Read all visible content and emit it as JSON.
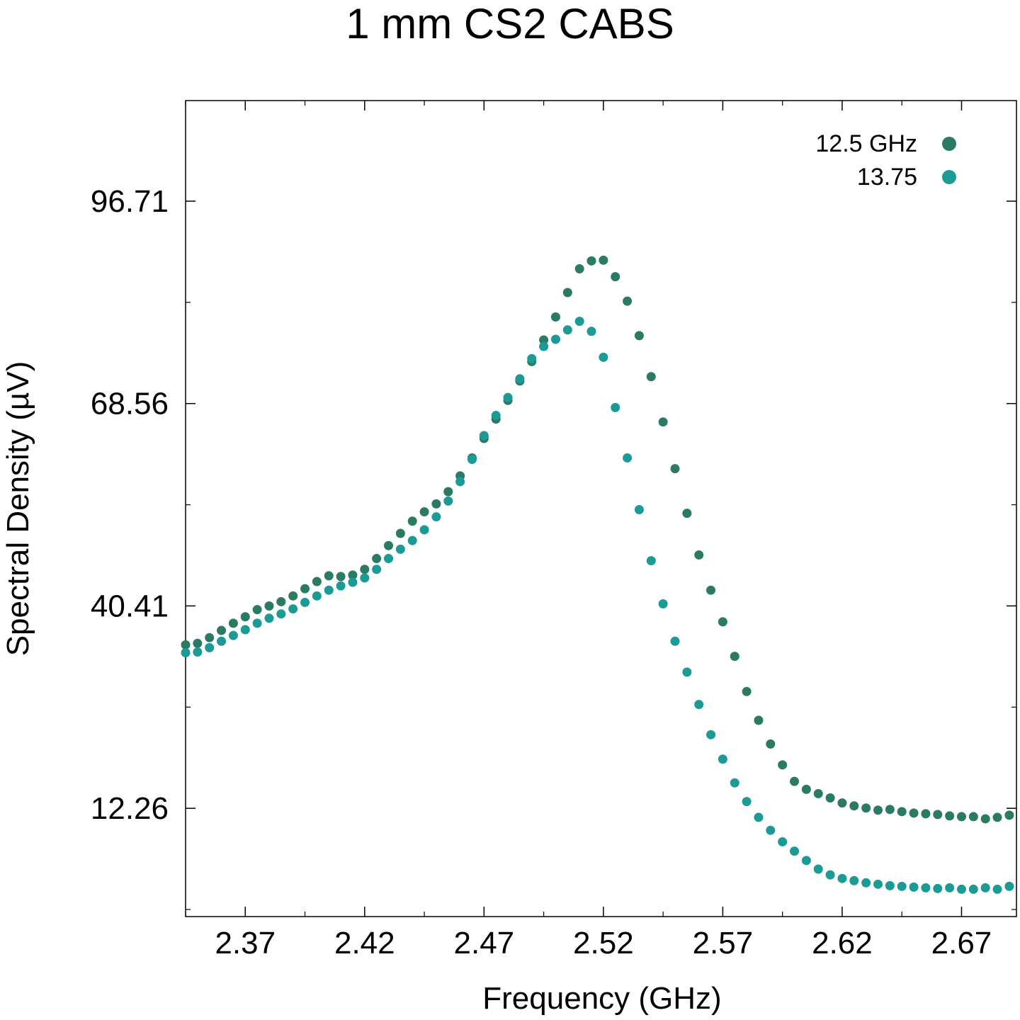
{
  "chart_data": {
    "type": "scatter",
    "title": "1 mm CS2 CABS",
    "xlabel": "Frequency (GHz)",
    "ylabel": "Spectral Density (µV)",
    "xlim": [
      2.345,
      2.693
    ],
    "ylim": [
      -2.8,
      110.7
    ],
    "xticks": [
      2.37,
      2.42,
      2.47,
      2.52,
      2.57,
      2.62,
      2.67
    ],
    "xtick_labels": [
      "2.37",
      "2.42",
      "2.47",
      "2.52",
      "2.57",
      "2.62",
      "2.67"
    ],
    "yticks": [
      12.26,
      40.41,
      68.56,
      96.71
    ],
    "ytick_labels": [
      "12.26",
      "40.41",
      "68.56",
      "96.71"
    ],
    "grid": false,
    "legend_position": "top-right",
    "series": [
      {
        "name": "12.5 GHz",
        "color": "#2b7b64",
        "x": [
          2.345,
          2.35,
          2.355,
          2.36,
          2.365,
          2.37,
          2.375,
          2.38,
          2.385,
          2.39,
          2.395,
          2.4,
          2.405,
          2.41,
          2.415,
          2.42,
          2.425,
          2.43,
          2.435,
          2.44,
          2.445,
          2.45,
          2.455,
          2.46,
          2.465,
          2.47,
          2.475,
          2.48,
          2.485,
          2.49,
          2.495,
          2.5,
          2.505,
          2.51,
          2.515,
          2.52,
          2.525,
          2.53,
          2.535,
          2.54,
          2.545,
          2.55,
          2.555,
          2.56,
          2.565,
          2.57,
          2.575,
          2.58,
          2.585,
          2.59,
          2.595,
          2.6,
          2.605,
          2.61,
          2.615,
          2.62,
          2.625,
          2.63,
          2.635,
          2.64,
          2.645,
          2.65,
          2.655,
          2.66,
          2.665,
          2.67,
          2.675,
          2.68,
          2.685,
          2.69
        ],
        "y": [
          35.0,
          35.2,
          36.0,
          37.0,
          38.0,
          38.9,
          39.9,
          40.4,
          41.0,
          41.8,
          42.8,
          43.8,
          44.6,
          44.5,
          44.7,
          45.5,
          47.0,
          48.8,
          50.5,
          52.2,
          53.5,
          54.6,
          56.3,
          58.5,
          61.0,
          63.7,
          66.4,
          69.0,
          71.7,
          74.4,
          77.4,
          80.6,
          84.0,
          87.3,
          88.4,
          88.5,
          86.2,
          82.8,
          78.0,
          72.3,
          66.0,
          59.5,
          53.3,
          47.5,
          42.6,
          38.2,
          33.4,
          28.5,
          24.5,
          21.2,
          18.3,
          16.0,
          14.9,
          14.3,
          13.7,
          13.0,
          12.6,
          12.3,
          12.0,
          12.1,
          11.8,
          11.6,
          11.5,
          11.4,
          11.2,
          11.1,
          11.1,
          10.8,
          11.0,
          11.3
        ]
      },
      {
        "name": "13.75",
        "color": "#1b9a96",
        "x": [
          2.345,
          2.35,
          2.355,
          2.36,
          2.365,
          2.37,
          2.375,
          2.38,
          2.385,
          2.39,
          2.395,
          2.4,
          2.405,
          2.41,
          2.415,
          2.42,
          2.425,
          2.43,
          2.435,
          2.44,
          2.445,
          2.45,
          2.455,
          2.46,
          2.465,
          2.47,
          2.475,
          2.48,
          2.485,
          2.49,
          2.495,
          2.5,
          2.505,
          2.51,
          2.515,
          2.52,
          2.525,
          2.53,
          2.535,
          2.54,
          2.545,
          2.55,
          2.555,
          2.56,
          2.565,
          2.57,
          2.575,
          2.58,
          2.585,
          2.59,
          2.595,
          2.6,
          2.605,
          2.61,
          2.615,
          2.62,
          2.625,
          2.63,
          2.635,
          2.64,
          2.645,
          2.65,
          2.655,
          2.66,
          2.665,
          2.67,
          2.675,
          2.68,
          2.685,
          2.69
        ],
        "y": [
          33.9,
          34.0,
          34.6,
          35.5,
          36.3,
          37.1,
          38.0,
          38.7,
          39.3,
          40.0,
          40.9,
          41.8,
          42.6,
          43.2,
          43.7,
          44.3,
          45.5,
          47.0,
          48.3,
          49.5,
          51.0,
          52.8,
          55.0,
          57.7,
          60.8,
          64.1,
          66.9,
          69.4,
          72.0,
          74.8,
          76.5,
          77.5,
          78.8,
          80.0,
          78.6,
          75.0,
          68.0,
          61.0,
          53.8,
          46.7,
          40.7,
          35.5,
          31.2,
          26.7,
          22.5,
          19.1,
          15.8,
          13.2,
          11.0,
          9.2,
          7.6,
          6.3,
          5.0,
          3.8,
          3.0,
          2.5,
          2.2,
          1.9,
          1.7,
          1.5,
          1.4,
          1.3,
          1.2,
          1.1,
          1.2,
          1.0,
          1.0,
          1.2,
          1.0,
          1.4
        ]
      }
    ]
  }
}
